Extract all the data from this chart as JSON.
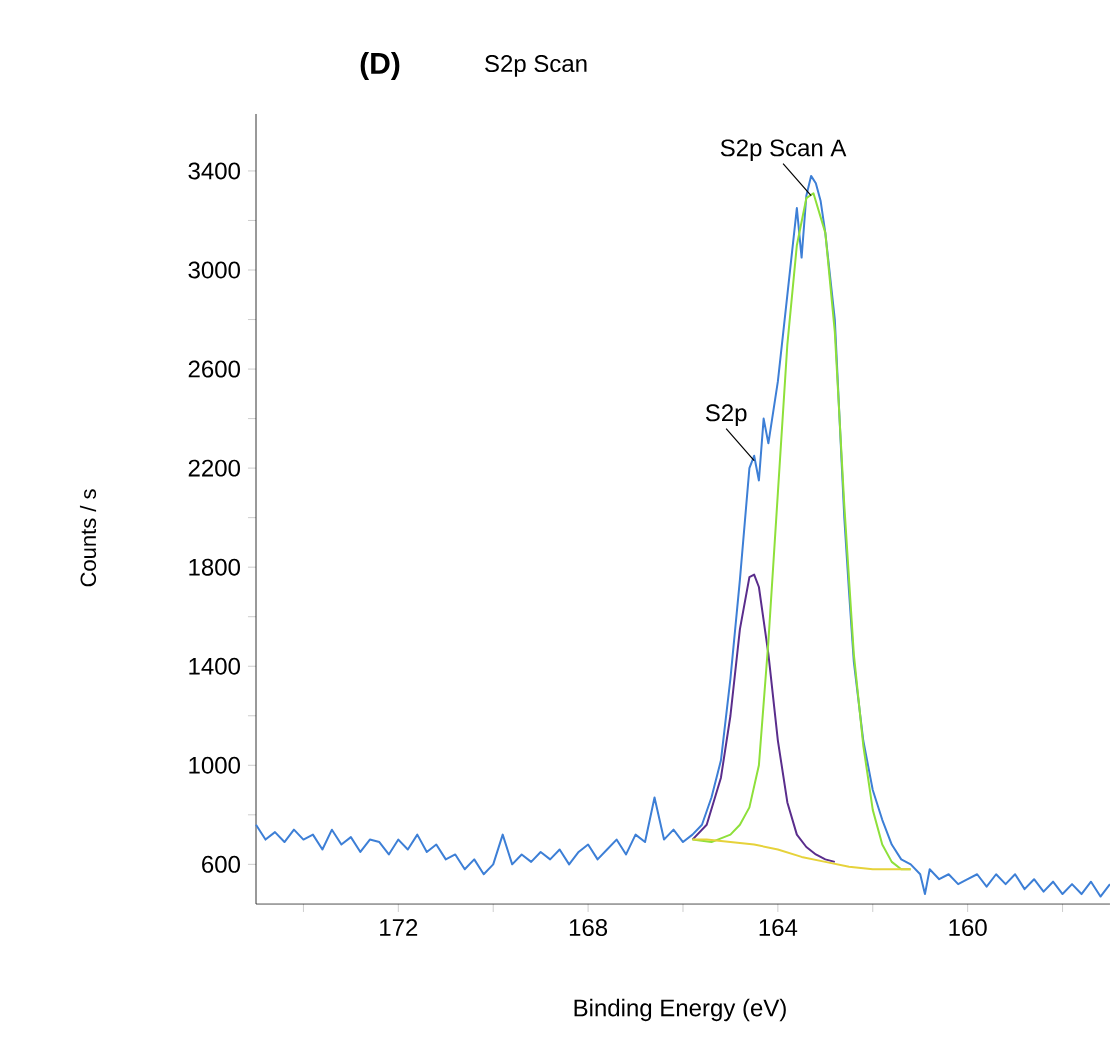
{
  "chart_data": {
    "type": "line",
    "title": "S2p Scan",
    "xlabel": "Binding Energy (eV)",
    "ylabel": "Counts / s",
    "annotations": [
      "(D)",
      {
        "text": "S2p Scan A",
        "x": 163.3,
        "y": 3300
      },
      {
        "text": "S2p",
        "x": 164.5,
        "y": 2230
      }
    ],
    "xlim": [
      175,
      157
    ],
    "ylim": [
      440,
      3630
    ],
    "xticks": [
      {
        "value": 174,
        "label": null
      },
      172,
      {
        "value": 170,
        "label": null
      },
      168,
      {
        "value": 166,
        "label": null
      },
      164,
      {
        "value": 162,
        "label": null
      },
      160,
      {
        "value": 158,
        "label": null
      }
    ],
    "yticks": [
      600,
      {
        "value": 800,
        "label": null
      },
      1000,
      {
        "value": 1200,
        "label": null
      },
      1400,
      {
        "value": 1600,
        "label": null
      },
      1800,
      {
        "value": 2000,
        "label": null
      },
      2200,
      {
        "value": 2400,
        "label": null
      },
      2600,
      {
        "value": 2800,
        "label": null
      },
      3000,
      {
        "value": 3200,
        "label": null
      },
      3400
    ],
    "grid": false,
    "line_style": "solid",
    "marker": "none",
    "series": [
      {
        "color": "#3d7fd6",
        "x": [
          175.0,
          174.8,
          174.6,
          174.4,
          174.2,
          174.0,
          173.8,
          173.6,
          173.4,
          173.2,
          173.0,
          172.8,
          172.6,
          172.4,
          172.2,
          172.0,
          171.8,
          171.6,
          171.4,
          171.2,
          171.0,
          170.8,
          170.6,
          170.4,
          170.2,
          170.0,
          169.8,
          169.6,
          169.4,
          169.2,
          169.0,
          168.8,
          168.6,
          168.4,
          168.2,
          168.0,
          167.8,
          167.6,
          167.4,
          167.2,
          167.0,
          166.8,
          166.6,
          166.4,
          166.2,
          166.0,
          165.8,
          165.6,
          165.4,
          165.2,
          165.0,
          164.8,
          164.6,
          164.5,
          164.4,
          164.3,
          164.2,
          164.0,
          163.8,
          163.6,
          163.5,
          163.4,
          163.3,
          163.2,
          163.1,
          163.0,
          162.8,
          162.6,
          162.5,
          162.4,
          162.2,
          162.0,
          161.8,
          161.6,
          161.4,
          161.2,
          161.0,
          160.9,
          160.8,
          160.6,
          160.4,
          160.2,
          160.0,
          159.8,
          159.6,
          159.4,
          159.2,
          159.0,
          158.8,
          158.6,
          158.4,
          158.2,
          158.0,
          157.8,
          157.6,
          157.4,
          157.2,
          157.0
        ],
        "values": [
          760,
          700,
          730,
          690,
          740,
          700,
          720,
          660,
          740,
          680,
          710,
          650,
          700,
          690,
          640,
          700,
          660,
          720,
          650,
          680,
          620,
          640,
          580,
          620,
          560,
          600,
          720,
          600,
          640,
          610,
          650,
          620,
          660,
          600,
          650,
          680,
          620,
          660,
          700,
          640,
          720,
          690,
          870,
          700,
          740,
          690,
          720,
          760,
          870,
          1020,
          1350,
          1750,
          2200,
          2250,
          2150,
          2400,
          2300,
          2550,
          2900,
          3250,
          3050,
          3300,
          3380,
          3350,
          3280,
          3150,
          2800,
          2000,
          1700,
          1420,
          1100,
          900,
          780,
          680,
          620,
          600,
          560,
          480,
          580,
          540,
          560,
          520,
          540,
          560,
          510,
          560,
          520,
          560,
          500,
          540,
          490,
          530,
          480,
          520,
          480,
          530,
          470,
          520
        ]
      },
      {
        "color": "#5a2d8c",
        "x": [
          165.8,
          165.5,
          165.2,
          165.0,
          164.8,
          164.6,
          164.5,
          164.4,
          164.2,
          164.0,
          163.8,
          163.6,
          163.4,
          163.2,
          163.0,
          162.8
        ],
        "values": [
          700,
          760,
          950,
          1200,
          1550,
          1760,
          1770,
          1720,
          1450,
          1100,
          850,
          720,
          670,
          640,
          620,
          610
        ]
      },
      {
        "color": "#8ee03a",
        "x": [
          165.8,
          165.4,
          165.0,
          164.8,
          164.6,
          164.4,
          164.2,
          164.0,
          163.8,
          163.6,
          163.4,
          163.25,
          163.0,
          162.8,
          162.6,
          162.4,
          162.2,
          162.0,
          161.8,
          161.6,
          161.4,
          161.2
        ],
        "values": [
          700,
          690,
          720,
          760,
          830,
          1000,
          1500,
          2100,
          2700,
          3100,
          3290,
          3310,
          3150,
          2750,
          2050,
          1450,
          1080,
          820,
          680,
          610,
          580,
          580
        ]
      },
      {
        "color": "#e6d23a",
        "x": [
          165.8,
          165.5,
          165.0,
          164.5,
          164.0,
          163.5,
          163.0,
          162.5,
          162.0,
          161.5,
          161.2
        ],
        "values": [
          700,
          700,
          690,
          680,
          660,
          630,
          610,
          590,
          580,
          580,
          580
        ]
      }
    ]
  }
}
